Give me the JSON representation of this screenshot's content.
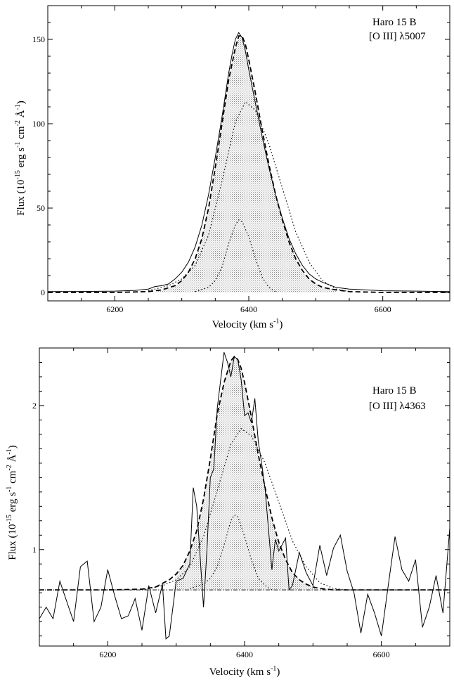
{
  "chart_data": [
    {
      "type": "line",
      "name": "panel-oiii-5007",
      "xlabel_text": "Velocity (km s",
      "xlabel_sup": "-1",
      "xlabel_close": ")",
      "ylabel_prefix": "Flux (10",
      "ylabel_exp1": "-15",
      "ylabel_mid1": " erg s",
      "ylabel_exp2": "-1",
      "ylabel_mid2": " cm",
      "ylabel_exp3": "-2",
      "ylabel_mid3": " Å",
      "ylabel_exp4": "-1",
      "ylabel_close": ")",
      "annotation": [
        "Haro 15 B",
        "[O III] λ5007"
      ],
      "xlim": [
        6100,
        6700
      ],
      "ylim": [
        -5,
        170
      ],
      "xticks": [
        6200,
        6400,
        6600
      ],
      "yticks": [
        0,
        50,
        100,
        150
      ],
      "grid": false,
      "series": [
        {
          "style": "solid-filled",
          "x": [
            6100,
            6150,
            6200,
            6230,
            6250,
            6260,
            6270,
            6280,
            6290,
            6300,
            6310,
            6320,
            6330,
            6340,
            6350,
            6360,
            6370,
            6375,
            6380,
            6385,
            6390,
            6395,
            6400,
            6410,
            6420,
            6430,
            6440,
            6450,
            6460,
            6470,
            6480,
            6490,
            6500,
            6510,
            6520,
            6530,
            6550,
            6600,
            6650,
            6700
          ],
          "y": [
            0.5,
            0.6,
            0.8,
            1.2,
            2,
            3.5,
            4,
            5,
            8,
            12,
            18,
            27,
            40,
            58,
            80,
            104,
            130,
            141,
            150,
            154,
            151,
            143,
            132,
            112,
            92,
            74,
            58,
            44,
            32,
            23,
            16,
            11,
            8,
            6,
            4.5,
            3,
            2,
            1,
            0.8,
            0.5
          ]
        },
        {
          "style": "dashed",
          "x": [
            6100,
            6200,
            6250,
            6270,
            6290,
            6300,
            6310,
            6320,
            6330,
            6340,
            6350,
            6360,
            6370,
            6380,
            6385,
            6390,
            6395,
            6400,
            6410,
            6420,
            6430,
            6440,
            6450,
            6460,
            6470,
            6480,
            6490,
            6500,
            6510,
            6530,
            6550,
            6600,
            6700
          ],
          "y": [
            0,
            0,
            0.5,
            1.5,
            4,
            7,
            12,
            20,
            32,
            50,
            74,
            100,
            126,
            145,
            152,
            152,
            147,
            138,
            118,
            96,
            76,
            58,
            43,
            30,
            20,
            13,
            8,
            5,
            3,
            1.5,
            0.5,
            0,
            0
          ]
        },
        {
          "style": "dotted",
          "x": [
            6250,
            6280,
            6300,
            6320,
            6340,
            6360,
            6380,
            6395,
            6410,
            6430,
            6450,
            6470,
            6490,
            6510,
            6530,
            6550
          ],
          "y": [
            1,
            4,
            8,
            16,
            34,
            66,
            101,
            113,
            108,
            88,
            62,
            36,
            18,
            7,
            2,
            0.5
          ]
        },
        {
          "style": "dotted",
          "x": [
            6320,
            6340,
            6350,
            6360,
            6370,
            6380,
            6385,
            6390,
            6400,
            6410,
            6420,
            6430,
            6440
          ],
          "y": [
            0.5,
            3,
            7,
            15,
            29,
            40,
            43,
            42,
            33,
            20,
            9,
            3,
            0.5
          ]
        }
      ]
    },
    {
      "type": "line",
      "name": "panel-oiii-4363",
      "xlabel_text": "Velocity (km s",
      "xlabel_sup": "-1",
      "xlabel_close": ")",
      "ylabel_prefix": "Flux (10",
      "ylabel_exp1": "-15",
      "ylabel_mid1": " erg s",
      "ylabel_exp2": "-1",
      "ylabel_mid2": " cm",
      "ylabel_exp3": "-2",
      "ylabel_mid3": " Å",
      "ylabel_exp4": "-1",
      "ylabel_close": ")",
      "annotation": [
        "Haro 15 B",
        "[O III] λ4363"
      ],
      "xlim": [
        6100,
        6700
      ],
      "ylim": [
        0.33,
        2.4
      ],
      "xticks": [
        6200,
        6400,
        6600
      ],
      "yticks": [
        1,
        2
      ],
      "grid": false,
      "baseline": 0.72,
      "series": [
        {
          "style": "solid-noisy",
          "x": [
            6100,
            6110,
            6120,
            6130,
            6140,
            6150,
            6160,
            6170,
            6180,
            6190,
            6200,
            6210,
            6220,
            6230,
            6240,
            6250,
            6260,
            6270,
            6280,
            6285,
            6290,
            6300,
            6310,
            6320,
            6325,
            6330,
            6340,
            6345,
            6350,
            6355,
            6360,
            6370,
            6375,
            6380,
            6385,
            6390,
            6395,
            6400,
            6405,
            6410,
            6415,
            6420,
            6425,
            6430,
            6440,
            6445,
            6450,
            6460,
            6465,
            6470,
            6480,
            6490,
            6500,
            6510,
            6520,
            6530,
            6540,
            6550,
            6560,
            6570,
            6580,
            6590,
            6600,
            6610,
            6620,
            6630,
            6640,
            6650,
            6660,
            6670,
            6680,
            6690,
            6700
          ],
          "y": [
            0.52,
            0.6,
            0.52,
            0.78,
            0.64,
            0.5,
            0.88,
            0.92,
            0.5,
            0.6,
            0.86,
            0.68,
            0.52,
            0.54,
            0.66,
            0.44,
            0.75,
            0.56,
            0.76,
            0.38,
            0.4,
            0.78,
            0.8,
            0.9,
            1.43,
            1.3,
            0.6,
            1.0,
            1.5,
            1.56,
            1.98,
            2.37,
            2.3,
            2.2,
            2.34,
            2.32,
            2.18,
            1.93,
            1.95,
            1.88,
            2.05,
            1.75,
            1.6,
            1.42,
            0.86,
            1.07,
            0.99,
            1.08,
            0.72,
            0.75,
            0.98,
            0.84,
            0.75,
            1.03,
            0.82,
            1.01,
            1.1,
            0.85,
            0.7,
            0.42,
            0.69,
            0.56,
            0.4,
            0.75,
            1.09,
            0.86,
            0.78,
            0.93,
            0.46,
            0.6,
            0.82,
            0.56,
            1.15
          ]
        },
        {
          "style": "dashed",
          "x": [
            6100,
            6200,
            6250,
            6270,
            6290,
            6300,
            6310,
            6320,
            6330,
            6340,
            6350,
            6360,
            6370,
            6380,
            6385,
            6390,
            6395,
            6400,
            6410,
            6420,
            6430,
            6440,
            6450,
            6460,
            6470,
            6480,
            6490,
            6500,
            6510,
            6530,
            6550,
            6600,
            6700
          ],
          "y": [
            0.72,
            0.72,
            0.725,
            0.74,
            0.79,
            0.83,
            0.89,
            0.99,
            1.13,
            1.35,
            1.63,
            1.94,
            2.16,
            2.31,
            2.34,
            2.32,
            2.26,
            2.16,
            1.92,
            1.66,
            1.43,
            1.22,
            1.05,
            0.93,
            0.84,
            0.79,
            0.76,
            0.74,
            0.73,
            0.72,
            0.72,
            0.72,
            0.72
          ]
        },
        {
          "style": "dotted",
          "x": [
            6250,
            6280,
            6300,
            6320,
            6340,
            6360,
            6380,
            6395,
            6410,
            6430,
            6450,
            6470,
            6490,
            6510,
            6530,
            6550,
            6700
          ],
          "y": [
            0.72,
            0.75,
            0.79,
            0.88,
            1.09,
            1.41,
            1.73,
            1.84,
            1.79,
            1.6,
            1.33,
            1.06,
            0.88,
            0.77,
            0.73,
            0.72,
            0.72
          ]
        },
        {
          "style": "dotted",
          "x": [
            6320,
            6340,
            6350,
            6360,
            6370,
            6380,
            6385,
            6390,
            6400,
            6410,
            6420,
            6430,
            6440
          ],
          "y": [
            0.73,
            0.76,
            0.8,
            0.88,
            1.03,
            1.2,
            1.24,
            1.23,
            1.09,
            0.93,
            0.8,
            0.75,
            0.72
          ]
        }
      ]
    }
  ]
}
